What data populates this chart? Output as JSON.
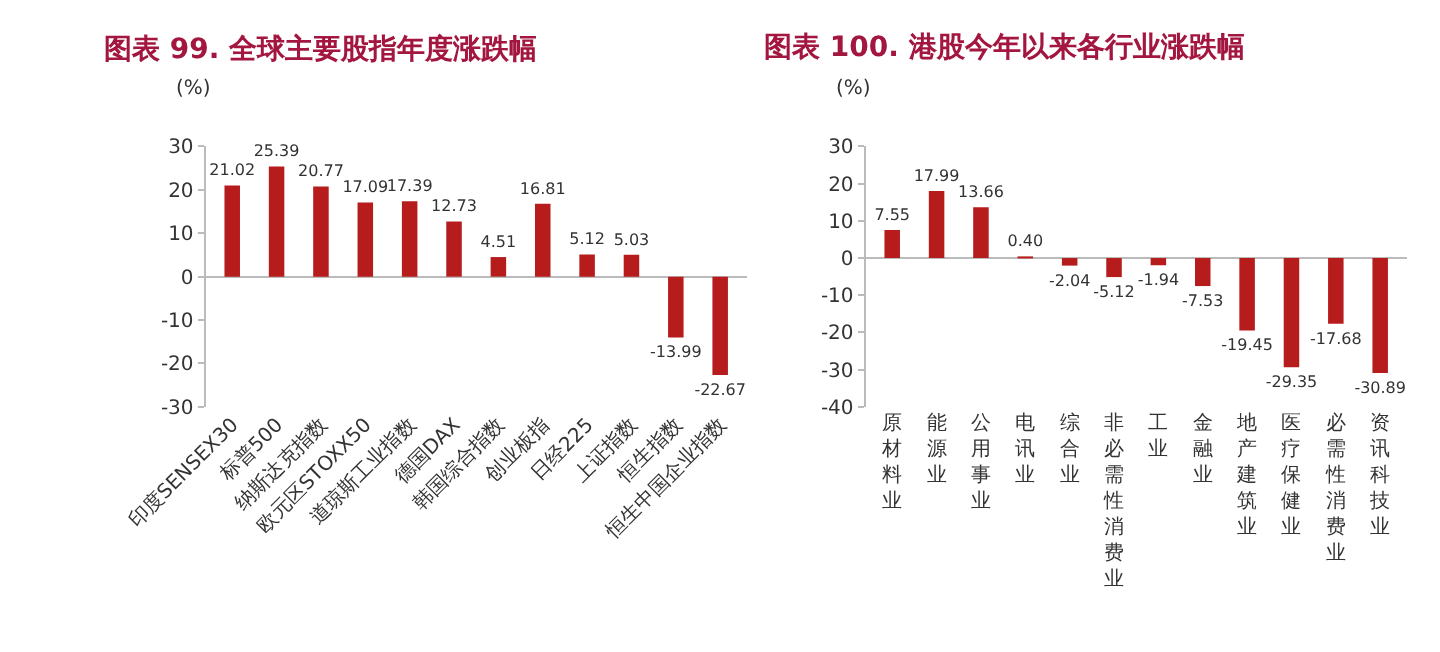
{
  "chart_data": [
    {
      "type": "bar",
      "title": "图表 99. 全球主要股指年度涨跌幅",
      "ylabel": "(%)",
      "categories": [
        "印度SENSEX30",
        "标普500",
        "纳斯达克指数",
        "欧元区STOXX50",
        "道琼斯工业指数",
        "德国DAX",
        "韩国综合指数",
        "创业板指",
        "日经225",
        "上证指数",
        "恒生指数",
        "恒生中国企业指数"
      ],
      "values": [
        21.02,
        25.39,
        20.77,
        17.09,
        17.39,
        12.73,
        4.51,
        16.81,
        5.12,
        5.03,
        -13.99,
        -22.67
      ],
      "color": "#b71c1c",
      "ylim": [
        -30,
        30
      ],
      "yticks": [
        -30,
        -20,
        -10,
        0,
        10,
        20,
        30
      ],
      "data_labels": true
    },
    {
      "type": "bar",
      "title": "图表 100. 港股今年以来各行业涨跌幅",
      "ylabel": "(%)",
      "categories": [
        "原材料业",
        "能源业",
        "公用事业",
        "电讯业",
        "综合业",
        "非必需性消费业",
        "工业",
        "金融业",
        "地产建筑业",
        "医疗保健业",
        "必需性消费业",
        "资讯科技业"
      ],
      "values": [
        7.55,
        17.99,
        13.66,
        0.4,
        -2.04,
        -5.12,
        -1.94,
        -7.53,
        -19.45,
        -29.35,
        -17.68,
        -30.89
      ],
      "value_labels": [
        "7.55",
        "17.99",
        "13.66",
        "0.40",
        "-2.04",
        "-5.12",
        "-1.94",
        "-7.53",
        "-19.45",
        "-29.35",
        "-17.68",
        "-30.89"
      ],
      "color": "#b71c1c",
      "ylim": [
        -40,
        30
      ],
      "yticks": [
        -40,
        -30,
        -20,
        -10,
        0,
        10,
        20,
        30
      ]
    }
  ]
}
